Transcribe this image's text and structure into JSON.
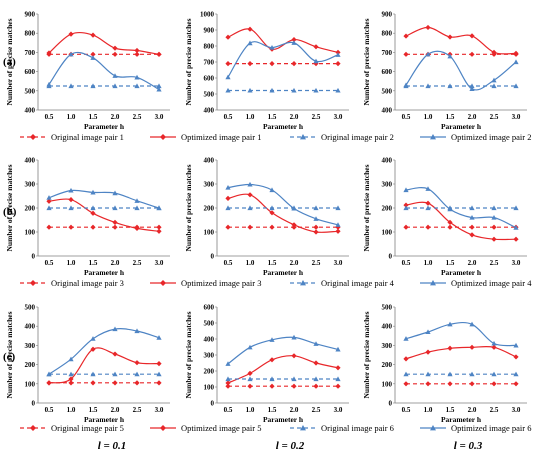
{
  "colors": {
    "red": "#e8272a",
    "blue": "#4e84c4",
    "axis": "#7f7f7f"
  },
  "x_ticks": [
    "0.5",
    "1.0",
    "1.5",
    "2.0",
    "2.5",
    "3.0"
  ],
  "common": {
    "xlabel": "Parameter h",
    "ylabel": "Number of precise matches"
  },
  "rows": [
    {
      "label": "(a)",
      "legend": [
        "Original image pair 1",
        "Optimized image pair 1",
        "Original image pair 2",
        "Optimized image pair 2"
      ]
    },
    {
      "label": "(b)",
      "legend": [
        "Original image pair 3",
        "Optimized image pair 3",
        "Original image pair 4",
        "Optimized image pair 4"
      ]
    },
    {
      "label": "(c)",
      "legend": [
        "Original image pair 5",
        "Optimized image pair 5",
        "Original image pair 6",
        "Optimized image pair 6"
      ]
    }
  ],
  "column_labels": [
    "l = 0.1",
    "l = 0.2",
    "l = 0.3"
  ],
  "chart_data": [
    {
      "type": "line",
      "row": 0,
      "col": 0,
      "x": [
        0.5,
        1.0,
        1.5,
        2.0,
        2.5,
        3.0
      ],
      "ylim": [
        400,
        900
      ],
      "yticks": [
        400,
        500,
        600,
        700,
        800,
        900
      ],
      "xlabel": "Parameter h",
      "ylabel": "Number of precise matches",
      "series": [
        {
          "name": "Original image pair 1",
          "values": [
            690,
            690,
            690,
            690,
            690,
            690
          ]
        },
        {
          "name": "Optimized image pair 1",
          "values": [
            697,
            795,
            790,
            722,
            710,
            690
          ]
        },
        {
          "name": "Original image pair 2",
          "values": [
            525,
            525,
            525,
            525,
            525,
            525
          ]
        },
        {
          "name": "Optimized image pair 2",
          "values": [
            533,
            690,
            672,
            578,
            570,
            507
          ]
        }
      ]
    },
    {
      "type": "line",
      "row": 0,
      "col": 1,
      "x": [
        0.5,
        1.0,
        1.5,
        2.0,
        2.5,
        3.0
      ],
      "ylim": [
        400,
        1000
      ],
      "yticks": [
        400,
        500,
        600,
        700,
        800,
        900,
        1000
      ],
      "xlabel": "Parameter h",
      "ylabel": "Number of precise matches",
      "series": [
        {
          "name": "Original image pair 1",
          "values": [
            690,
            690,
            690,
            690,
            690,
            690
          ]
        },
        {
          "name": "Optimized image pair 1",
          "values": [
            855,
            905,
            780,
            840,
            795,
            760
          ]
        },
        {
          "name": "Original image pair 2",
          "values": [
            522,
            522,
            522,
            522,
            522,
            522
          ]
        },
        {
          "name": "Optimized image pair 2",
          "values": [
            605,
            818,
            790,
            820,
            705,
            745
          ]
        }
      ]
    },
    {
      "type": "line",
      "row": 0,
      "col": 2,
      "x": [
        0.5,
        1.0,
        1.5,
        2.0,
        2.5,
        3.0
      ],
      "ylim": [
        400,
        900
      ],
      "yticks": [
        400,
        500,
        600,
        700,
        800,
        900
      ],
      "xlabel": "Parameter h",
      "ylabel": "Number of precise matches",
      "series": [
        {
          "name": "Original image pair 1",
          "values": [
            690,
            690,
            690,
            690,
            690,
            690
          ]
        },
        {
          "name": "Optimized image pair 1",
          "values": [
            785,
            830,
            780,
            786,
            700,
            695
          ]
        },
        {
          "name": "Original image pair 2",
          "values": [
            525,
            525,
            525,
            525,
            525,
            525
          ]
        },
        {
          "name": "Optimized image pair 2",
          "values": [
            530,
            690,
            680,
            510,
            555,
            650
          ]
        }
      ]
    },
    {
      "type": "line",
      "row": 1,
      "col": 0,
      "x": [
        0.5,
        1.0,
        1.5,
        2.0,
        2.5,
        3.0
      ],
      "ylim": [
        0,
        400
      ],
      "yticks": [
        0,
        100,
        200,
        300,
        400
      ],
      "xlabel": "Parameter h",
      "ylabel": "Number of precise matches",
      "series": [
        {
          "name": "Original image pair 3",
          "values": [
            120,
            120,
            120,
            120,
            120,
            120
          ]
        },
        {
          "name": "Optimized image pair 3",
          "values": [
            228,
            235,
            178,
            140,
            115,
            103
          ]
        },
        {
          "name": "Original image pair 4",
          "values": [
            200,
            200,
            200,
            200,
            200,
            200
          ]
        },
        {
          "name": "Optimized image pair 4",
          "values": [
            243,
            273,
            265,
            262,
            230,
            200
          ]
        }
      ]
    },
    {
      "type": "line",
      "row": 1,
      "col": 1,
      "x": [
        0.5,
        1.0,
        1.5,
        2.0,
        2.5,
        3.0
      ],
      "ylim": [
        0,
        400
      ],
      "yticks": [
        0,
        100,
        200,
        300,
        400
      ],
      "xlabel": "Parameter h",
      "ylabel": "Number of precise matches",
      "series": [
        {
          "name": "Original image pair 3",
          "values": [
            120,
            120,
            120,
            120,
            120,
            120
          ]
        },
        {
          "name": "Optimized image pair 3",
          "values": [
            240,
            255,
            180,
            130,
            100,
            103
          ]
        },
        {
          "name": "Original image pair 4",
          "values": [
            200,
            200,
            200,
            200,
            200,
            200
          ]
        },
        {
          "name": "Optimized image pair 4",
          "values": [
            285,
            298,
            275,
            198,
            155,
            130
          ]
        }
      ]
    },
    {
      "type": "line",
      "row": 1,
      "col": 2,
      "x": [
        0.5,
        1.0,
        1.5,
        2.0,
        2.5,
        3.0
      ],
      "ylim": [
        0,
        400
      ],
      "yticks": [
        0,
        100,
        200,
        300,
        400
      ],
      "xlabel": "Parameter h",
      "ylabel": "Number of precise matches",
      "series": [
        {
          "name": "Original image pair 3",
          "values": [
            120,
            120,
            120,
            120,
            120,
            120
          ]
        },
        {
          "name": "Optimized image pair 3",
          "values": [
            212,
            220,
            140,
            88,
            70,
            70
          ]
        },
        {
          "name": "Original image pair 4",
          "values": [
            200,
            200,
            200,
            200,
            200,
            200
          ]
        },
        {
          "name": "Optimized image pair 4",
          "values": [
            275,
            280,
            195,
            160,
            160,
            118
          ]
        }
      ]
    },
    {
      "type": "line",
      "row": 2,
      "col": 0,
      "x": [
        0.5,
        1.0,
        1.5,
        2.0,
        2.5,
        3.0
      ],
      "ylim": [
        0,
        500
      ],
      "yticks": [
        0,
        100,
        200,
        300,
        400,
        500
      ],
      "xlabel": "Parameter h",
      "ylabel": "Number of precise matches",
      "series": [
        {
          "name": "Original image pair 5",
          "values": [
            105,
            105,
            105,
            105,
            105,
            105
          ]
        },
        {
          "name": "Optimized image pair 5",
          "values": [
            105,
            125,
            280,
            255,
            210,
            205
          ]
        },
        {
          "name": "Original image pair 6",
          "values": [
            150,
            150,
            150,
            150,
            150,
            150
          ]
        },
        {
          "name": "Optimized image pair 6",
          "values": [
            150,
            228,
            335,
            385,
            375,
            340
          ]
        }
      ]
    },
    {
      "type": "line",
      "row": 2,
      "col": 1,
      "x": [
        0.5,
        1.0,
        1.5,
        2.0,
        2.5,
        3.0
      ],
      "ylim": [
        0,
        600
      ],
      "yticks": [
        0,
        100,
        200,
        300,
        400,
        500,
        600
      ],
      "xlabel": "Parameter h",
      "ylabel": "Number of precise matches",
      "series": [
        {
          "name": "Original image pair 5",
          "values": [
            105,
            105,
            105,
            105,
            105,
            105
          ]
        },
        {
          "name": "Optimized image pair 5",
          "values": [
            125,
            185,
            270,
            295,
            250,
            220
          ]
        },
        {
          "name": "Original image pair 6",
          "values": [
            150,
            150,
            150,
            150,
            150,
            150
          ]
        },
        {
          "name": "Optimized image pair 6",
          "values": [
            245,
            348,
            395,
            410,
            370,
            335
          ]
        }
      ]
    },
    {
      "type": "line",
      "row": 2,
      "col": 2,
      "x": [
        0.5,
        1.0,
        1.5,
        2.0,
        2.5,
        3.0
      ],
      "ylim": [
        0,
        500
      ],
      "yticks": [
        0,
        100,
        200,
        300,
        400,
        500
      ],
      "xlabel": "Parameter h",
      "ylabel": "Number of precise matches",
      "series": [
        {
          "name": "Original image pair 5",
          "values": [
            100,
            100,
            100,
            100,
            100,
            100
          ]
        },
        {
          "name": "Optimized image pair 5",
          "values": [
            230,
            265,
            285,
            290,
            290,
            240
          ]
        },
        {
          "name": "Original image pair 6",
          "values": [
            150,
            150,
            150,
            150,
            150,
            150
          ]
        },
        {
          "name": "Optimized image pair 6",
          "values": [
            335,
            370,
            410,
            410,
            310,
            300
          ]
        }
      ]
    }
  ]
}
